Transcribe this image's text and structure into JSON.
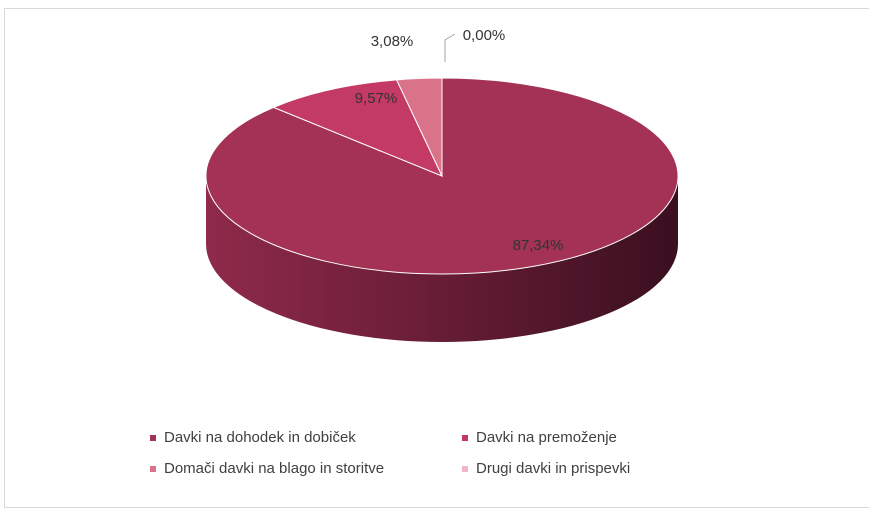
{
  "chart_data": {
    "type": "pie",
    "categories": [
      "Davki na dohodek in dobiček",
      "Davki na premoženje",
      "Domači davki na blago in storitve",
      "Drugi davki in prispevki"
    ],
    "values": [
      87.34,
      9.57,
      3.08,
      0.0
    ],
    "labels": [
      "87,34%",
      "9,57%",
      "3,08%",
      "0,00%"
    ],
    "colors": [
      "#a33255",
      "#c33a64",
      "#d9738a",
      "#f0b6c4"
    ],
    "legend_position": "bottom",
    "style": "3d"
  },
  "legend": [
    {
      "label": "Davki na dohodek in dobiček",
      "color": "#a33255"
    },
    {
      "label": "Davki na premoženje",
      "color": "#c33a64"
    },
    {
      "label": "Domači davki na blago in storitve",
      "color": "#d9738a"
    },
    {
      "label": "Drugi davki in prispevki",
      "color": "#f0b6c4"
    }
  ]
}
